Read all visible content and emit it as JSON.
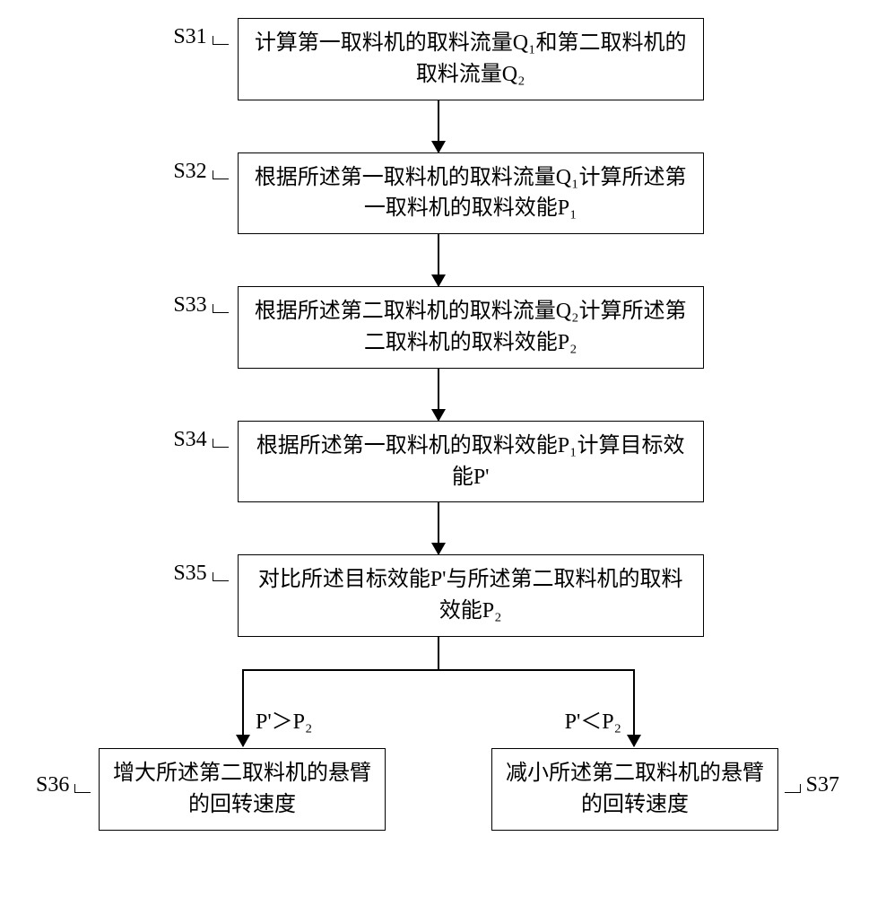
{
  "flowchart": {
    "type": "flowchart",
    "node_border_color": "#000000",
    "background_color": "#ffffff",
    "font_size_pt": 18,
    "font_family": "SimSun",
    "steps": [
      {
        "id": "S31",
        "label": "S31",
        "text": "计算第一取料机的取料流量Q₁和第二取料机的取料流量Q₂"
      },
      {
        "id": "S32",
        "label": "S32",
        "text": "根据所述第一取料机的取料流量Q₁计算所述第一取料机的取料效能P₁"
      },
      {
        "id": "S33",
        "label": "S33",
        "text": "根据所述第二取料机的取料流量Q₂计算所述第二取料机的取料效能P₂"
      },
      {
        "id": "S34",
        "label": "S34",
        "text": "根据所述第一取料机的取料效能P₁计算目标效能P'"
      },
      {
        "id": "S35",
        "label": "S35",
        "text": "对比所述目标效能P'与所述第二取料机的取料效能P₂"
      }
    ],
    "branch": {
      "left": {
        "id": "S36",
        "label": "S36",
        "condition": "P'＞P₂",
        "text": "增大所述第二取料机的悬臂的回转速度"
      },
      "right": {
        "id": "S37",
        "label": "S37",
        "condition": "P'＜P₂",
        "text": "减小所述第二取料机的悬臂的回转速度"
      }
    }
  }
}
